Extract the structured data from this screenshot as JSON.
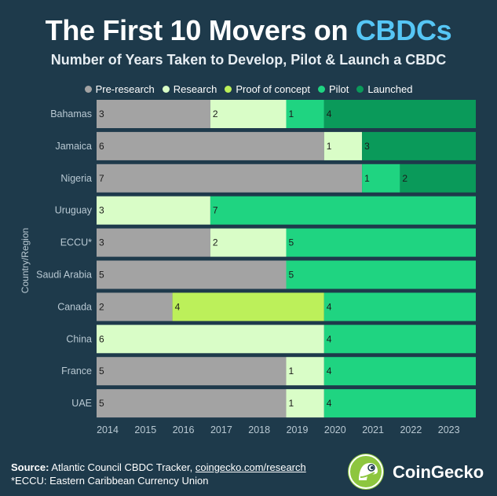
{
  "title": {
    "prefix": "The First 10 Movers on ",
    "highlight": "CBDCs"
  },
  "subtitle": "Number of Years Taken to Develop, Pilot & Launch a CBDC",
  "colors": {
    "background": "#1e3a4b",
    "Pre-research": "#a3a3a3",
    "Research": "#d9fdc7",
    "Proof of concept": "#bcf05a",
    "Pilot": "#1fd481",
    "Launched": "#0a9a5a"
  },
  "chart_data": {
    "type": "bar",
    "orientation": "horizontal",
    "stacked": true,
    "title": "Number of Years Taken to Develop, Pilot & Launch a CBDC",
    "ylabel": "Country/Region",
    "xlabel": "",
    "x_start": 2014,
    "xlim": [
      2014,
      2024
    ],
    "x_ticks": [
      "2014",
      "2015",
      "2016",
      "2017",
      "2018",
      "2019",
      "2020",
      "2021",
      "2022",
      "2023"
    ],
    "legend": [
      "Pre-research",
      "Research",
      "Proof of concept",
      "Pilot",
      "Launched"
    ],
    "legend_position": "top",
    "categories": [
      "Bahamas",
      "Jamaica",
      "Nigeria",
      "Uruguay",
      "ECCU*",
      "Saudi Arabia",
      "Canada",
      "China",
      "France",
      "UAE"
    ],
    "rows": [
      {
        "country": "Bahamas",
        "segments": [
          {
            "stage": "Pre-research",
            "value": 3
          },
          {
            "stage": "Research",
            "value": 2
          },
          {
            "stage": "Pilot",
            "value": 1
          },
          {
            "stage": "Launched",
            "value": 4
          }
        ]
      },
      {
        "country": "Jamaica",
        "segments": [
          {
            "stage": "Pre-research",
            "value": 6
          },
          {
            "stage": "Research",
            "value": 1
          },
          {
            "stage": "Launched",
            "value": 3
          }
        ]
      },
      {
        "country": "Nigeria",
        "segments": [
          {
            "stage": "Pre-research",
            "value": 7
          },
          {
            "stage": "Pilot",
            "value": 1
          },
          {
            "stage": "Launched",
            "value": 2
          }
        ]
      },
      {
        "country": "Uruguay",
        "segments": [
          {
            "stage": "Research",
            "value": 3
          },
          {
            "stage": "Pilot",
            "value": 7
          }
        ]
      },
      {
        "country": "ECCU*",
        "segments": [
          {
            "stage": "Pre-research",
            "value": 3
          },
          {
            "stage": "Research",
            "value": 2
          },
          {
            "stage": "Pilot",
            "value": 5
          }
        ]
      },
      {
        "country": "Saudi Arabia",
        "segments": [
          {
            "stage": "Pre-research",
            "value": 5
          },
          {
            "stage": "Pilot",
            "value": 5
          }
        ]
      },
      {
        "country": "Canada",
        "segments": [
          {
            "stage": "Pre-research",
            "value": 2
          },
          {
            "stage": "Proof of concept",
            "value": 4
          },
          {
            "stage": "Pilot",
            "value": 4
          }
        ]
      },
      {
        "country": "China",
        "segments": [
          {
            "stage": "Research",
            "value": 6
          },
          {
            "stage": "Pilot",
            "value": 4
          }
        ]
      },
      {
        "country": "France",
        "segments": [
          {
            "stage": "Pre-research",
            "value": 5
          },
          {
            "stage": "Research",
            "value": 1
          },
          {
            "stage": "Pilot",
            "value": 4
          }
        ]
      },
      {
        "country": "UAE",
        "segments": [
          {
            "stage": "Pre-research",
            "value": 5
          },
          {
            "stage": "Research",
            "value": 1
          },
          {
            "stage": "Pilot",
            "value": 4
          }
        ]
      }
    ]
  },
  "footer": {
    "source_label": "Source:",
    "source_text": "Atlantic Council CBDC Tracker,",
    "source_link": "coingecko.com/research",
    "note": "*ECCU: Eastern Caribbean Currency Union"
  },
  "logo": {
    "name": "CoinGecko",
    "icon": "gecko-icon"
  }
}
